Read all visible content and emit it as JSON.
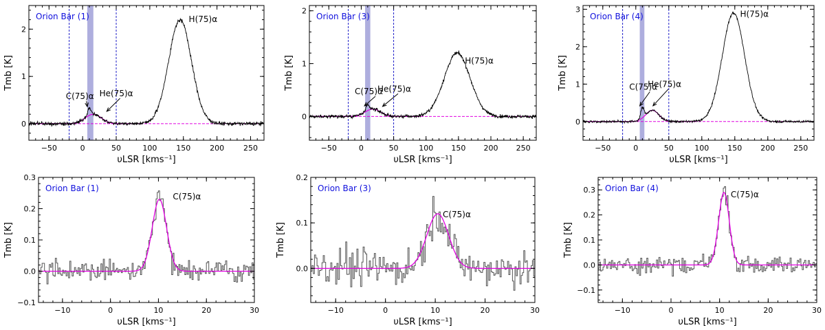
{
  "figure": {
    "layout": "2 rows x 3 columns of radio recombination line spectra"
  },
  "chart_data": [
    {
      "type": "line",
      "title": "Orion Bar (1)",
      "xlabel": "υLSR [kms⁻¹]",
      "ylabel": "Tmb [K]",
      "xlim": [
        -80,
        270
      ],
      "ylim": [
        -0.35,
        2.5
      ],
      "xticks": [
        -50,
        0,
        50,
        100,
        150,
        200,
        250
      ],
      "yticks": [
        0,
        1,
        2
      ],
      "baseline": 0,
      "shaded_band": [
        7,
        16
      ],
      "dashed_vlines": [
        -20,
        50
      ],
      "peaks": [
        {
          "center": 145,
          "amp": 2.2,
          "sigma": 17
        },
        {
          "center": 10,
          "amp": 0.16,
          "sigma": 2.5
        },
        {
          "center": 16,
          "amp": 0.2,
          "sigma": 12
        }
      ],
      "noise": 0.03,
      "annotations": [
        {
          "text": "H(75)α",
          "x": 158,
          "y": 2.15
        },
        {
          "text": "C(75)α",
          "x": -25,
          "y": 0.52,
          "arrow_to": [
            7,
            0.36
          ]
        },
        {
          "text": "He(75)α",
          "x": 25,
          "y": 0.58,
          "arrow_to": [
            36,
            0.26
          ]
        }
      ]
    },
    {
      "type": "line",
      "title": "Orion Bar (3)",
      "xlabel": "υLSR [kms⁻¹]",
      "ylabel": "Tmb [K]",
      "xlim": [
        -80,
        270
      ],
      "ylim": [
        -0.45,
        2.1
      ],
      "xticks": [
        -50,
        0,
        50,
        100,
        150,
        200,
        250
      ],
      "yticks": [
        0,
        1,
        2
      ],
      "baseline": 0,
      "shaded_band": [
        6,
        14
      ],
      "dashed_vlines": [
        -20,
        50
      ],
      "peaks": [
        {
          "center": 148,
          "amp": 1.2,
          "sigma": 20
        },
        {
          "center": 10,
          "amp": 0.1,
          "sigma": 2.5
        },
        {
          "center": 18,
          "amp": 0.14,
          "sigma": 12
        }
      ],
      "noise": 0.025,
      "annotations": [
        {
          "text": "H(75)α",
          "x": 160,
          "y": 1.0
        },
        {
          "text": "C(75)α",
          "x": -10,
          "y": 0.42,
          "arrow_to": [
            5,
            0.2
          ]
        },
        {
          "text": "He(75)α",
          "x": 25,
          "y": 0.47,
          "arrow_to": [
            33,
            0.19
          ]
        }
      ]
    },
    {
      "type": "line",
      "title": "Orion Bar (4)",
      "xlabel": "υLSR [kms⁻¹]",
      "ylabel": "Tmb [K]",
      "xlim": [
        -80,
        270
      ],
      "ylim": [
        -0.5,
        3.1
      ],
      "xticks": [
        -50,
        0,
        50,
        100,
        150,
        200,
        250
      ],
      "yticks": [
        0,
        1,
        2,
        3
      ],
      "baseline": 0,
      "shaded_band": [
        6,
        13
      ],
      "dashed_vlines": [
        -20,
        50
      ],
      "peaks": [
        {
          "center": 148,
          "amp": 2.9,
          "sigma": 17
        },
        {
          "center": 10,
          "amp": 0.28,
          "sigma": 2.5
        },
        {
          "center": 25,
          "amp": 0.3,
          "sigma": 10
        }
      ],
      "noise": 0.025,
      "annotations": [
        {
          "text": "H(75)α",
          "x": 158,
          "y": 2.8
        },
        {
          "text": "C(75)α",
          "x": -10,
          "y": 0.85,
          "arrow_to": [
            6,
            0.42
          ]
        },
        {
          "text": "He(75)α",
          "x": 18,
          "y": 0.92,
          "arrow_to": [
            26,
            0.42
          ]
        }
      ]
    },
    {
      "type": "line",
      "title": "Orion Bar (1)",
      "xlabel": "υLSR [kms⁻¹]",
      "ylabel": "Tmb [K]",
      "xlim": [
        -15,
        30
      ],
      "ylim": [
        -0.1,
        0.3
      ],
      "xticks": [
        -10,
        0,
        10,
        20,
        30
      ],
      "yticks": [
        -0.1,
        0.0,
        0.1,
        0.2,
        0.3
      ],
      "fit": {
        "center": 10.2,
        "amp": 0.23,
        "sigma": 1.5
      },
      "noise": 0.028,
      "annotations": [
        {
          "text": "C(75)α",
          "x": 13,
          "y": 0.23
        }
      ]
    },
    {
      "type": "line",
      "title": "Orion Bar (3)",
      "xlabel": "υLSR [kms⁻¹]",
      "ylabel": "Tmb [K]",
      "xlim": [
        -15,
        30
      ],
      "ylim": [
        -0.075,
        0.2
      ],
      "xticks": [
        -10,
        0,
        10,
        20,
        30
      ],
      "yticks": [
        0.0,
        0.1,
        0.2
      ],
      "fit": {
        "center": 10.5,
        "amp": 0.12,
        "sigma": 2.2
      },
      "noise": 0.03,
      "annotations": [
        {
          "text": "C(75)α",
          "x": 11.5,
          "y": 0.112
        }
      ]
    },
    {
      "type": "line",
      "title": "Orion Bar (4)",
      "xlabel": "υLSR [kms⁻¹]",
      "ylabel": "Tmb [K]",
      "xlim": [
        -15,
        30
      ],
      "ylim": [
        -0.15,
        0.35
      ],
      "xticks": [
        -10,
        0,
        10,
        20,
        30
      ],
      "yticks": [
        -0.1,
        0.0,
        0.1,
        0.2,
        0.3
      ],
      "fit": {
        "center": 10.9,
        "amp": 0.29,
        "sigma": 1.1
      },
      "noise": 0.028,
      "annotations": [
        {
          "text": "C(75)α",
          "x": 12.3,
          "y": 0.27
        }
      ]
    }
  ]
}
